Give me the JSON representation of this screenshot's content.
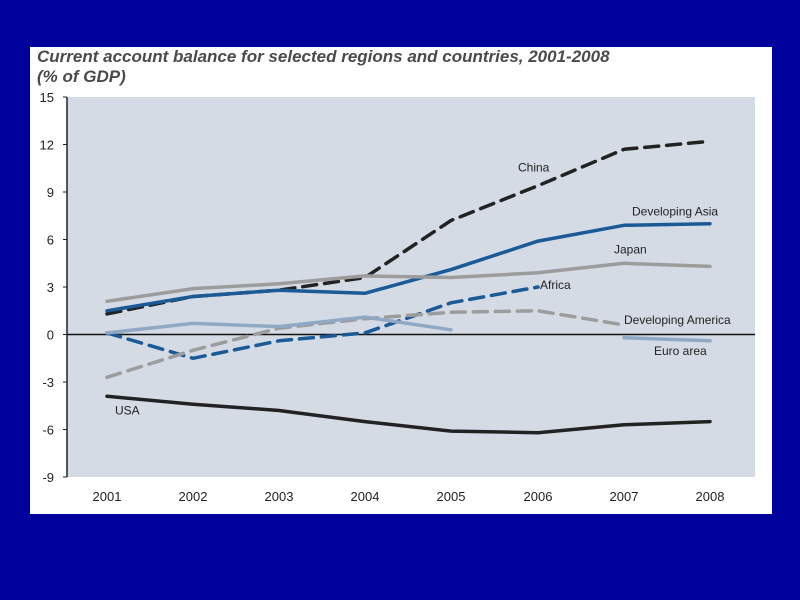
{
  "colors": {
    "background": "#00009c",
    "figure": "#ffffff",
    "plot": "#d5dbe5",
    "china": "#222222",
    "developing_asia": "#1a5a96",
    "japan": "#9c9c9c",
    "africa": "#1a5a96",
    "developing_america": "#9c9c9c",
    "euro_area": "#8fa9c4",
    "usa": "#222222"
  },
  "chart_data": {
    "type": "line",
    "title_line1": "Current account balance for selected regions and countries, 2001-2008",
    "title_line2": "(% of GDP)",
    "xlabel": "",
    "ylabel": "",
    "x": [
      "2001",
      "2002",
      "2003",
      "2004",
      "2005",
      "2006",
      "2007",
      "2008"
    ],
    "ylim": [
      -9,
      15
    ],
    "yticks": [
      "15",
      "12",
      "9",
      "6",
      "3",
      "0",
      "-3",
      "-6",
      "-9"
    ],
    "ytick_values": [
      15,
      12,
      9,
      6,
      3,
      0,
      -3,
      -6,
      -9
    ],
    "grid": false,
    "series": [
      {
        "key": "china",
        "name": "China",
        "style": "dashed",
        "values": [
          1.3,
          2.4,
          2.8,
          3.6,
          7.2,
          9.4,
          11.7,
          12.2
        ],
        "label_at": 5
      },
      {
        "key": "developing_asia",
        "name": "Developing Asia",
        "style": "solid",
        "values": [
          1.5,
          2.4,
          2.8,
          2.6,
          4.1,
          5.9,
          6.9,
          7.0
        ],
        "label_at": 7
      },
      {
        "key": "japan",
        "name": "Japan",
        "style": "solid",
        "values": [
          2.1,
          2.9,
          3.2,
          3.7,
          3.6,
          3.9,
          4.5,
          4.3
        ],
        "label_at": 6
      },
      {
        "key": "africa",
        "name": "Africa",
        "style": "dashed",
        "values": [
          0.1,
          -1.5,
          -0.4,
          0.1,
          2.0,
          3.0,
          null,
          null
        ],
        "label_at": 5
      },
      {
        "key": "developing_america",
        "name": "Developing America",
        "style": "dashed",
        "values": [
          -2.7,
          -1.0,
          0.4,
          1.0,
          1.4,
          1.5,
          0.6,
          null
        ],
        "label_at": 6
      },
      {
        "key": "euro_area",
        "name": "Euro area",
        "style": "solid",
        "values": [
          0.1,
          0.7,
          0.5,
          1.1,
          0.3,
          null,
          -0.2,
          -0.4
        ],
        "label_at": 7
      },
      {
        "key": "usa",
        "name": "USA",
        "style": "solid",
        "values": [
          -3.9,
          -4.4,
          -4.8,
          -5.5,
          -6.1,
          -6.2,
          -5.7,
          -5.5
        ],
        "label_at": 0
      }
    ]
  }
}
